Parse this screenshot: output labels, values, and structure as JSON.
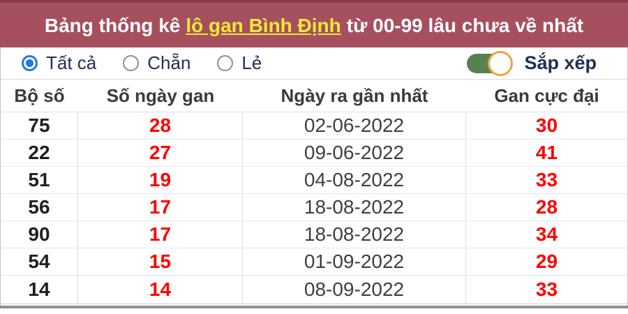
{
  "colors": {
    "header-bg": "#a6505f",
    "header-top": "#8a3a48",
    "link-yellow": "#f1e836",
    "navy": "#232e52",
    "blue": "#2176e8",
    "green": "#55824f",
    "orange": "#f2a240",
    "red": "#ff0000",
    "ink": "#1f1f1f",
    "gray-text": "#3b3f46"
  },
  "header": {
    "title_prefix": "Bảng thống kê",
    "title_link": "lô gan Bình Định",
    "title_suffix": "từ 00-99 lâu chưa về nhất"
  },
  "filters": {
    "options": [
      {
        "label": "Tất cả",
        "selected": true
      },
      {
        "label": "Chẵn",
        "selected": false
      },
      {
        "label": "Lẻ",
        "selected": false
      }
    ],
    "sort_label": "Sắp xếp",
    "sort_enabled": true
  },
  "table": {
    "columns": [
      "Bộ số",
      "Số ngày gan",
      "Ngày ra gần nhất",
      "Gan cực đại"
    ],
    "rows": [
      {
        "pair": "75",
        "days": "28",
        "last_date": "02-06-2022",
        "max": "30"
      },
      {
        "pair": "22",
        "days": "27",
        "last_date": "09-06-2022",
        "max": "41"
      },
      {
        "pair": "51",
        "days": "19",
        "last_date": "04-08-2022",
        "max": "33"
      },
      {
        "pair": "56",
        "days": "17",
        "last_date": "18-08-2022",
        "max": "28"
      },
      {
        "pair": "90",
        "days": "17",
        "last_date": "18-08-2022",
        "max": "34"
      },
      {
        "pair": "54",
        "days": "15",
        "last_date": "01-09-2022",
        "max": "29"
      },
      {
        "pair": "14",
        "days": "14",
        "last_date": "08-09-2022",
        "max": "33"
      }
    ]
  }
}
